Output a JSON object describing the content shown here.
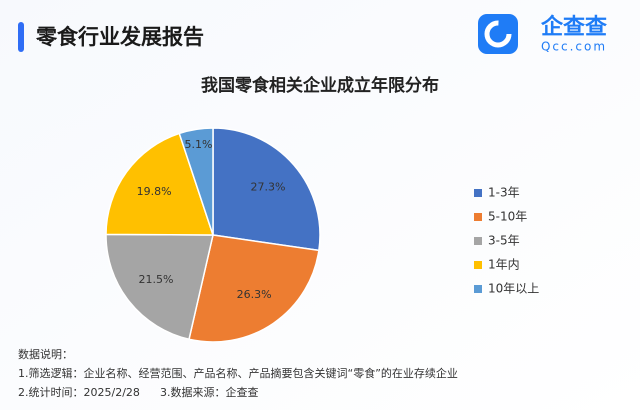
{
  "header": {
    "title": "零食行业发展报告"
  },
  "logo": {
    "name": "企查查",
    "domain": "Qcc.com"
  },
  "chart_data": {
    "type": "pie",
    "title": "我国零食相关企业成立年限分布",
    "categories": [
      "1-3年",
      "5-10年",
      "3-5年",
      "1年内",
      "10年以上"
    ],
    "values": [
      27.3,
      26.3,
      21.5,
      19.8,
      5.1
    ],
    "value_labels": [
      "27.3%",
      "26.3%",
      "21.5%",
      "19.8%",
      "5.1%"
    ],
    "colors": [
      "#4472c4",
      "#ed7d31",
      "#a5a5a5",
      "#ffc000",
      "#5b9bd5"
    ]
  },
  "notes": {
    "heading": "数据说明：",
    "lines": [
      "1.筛选逻辑：企业名称、经营范围、产品名称、产品摘要包含关键词“零食”的在业存续企业",
      "2.统计时间：2025/2/28",
      "3.数据来源：企查查"
    ]
  }
}
